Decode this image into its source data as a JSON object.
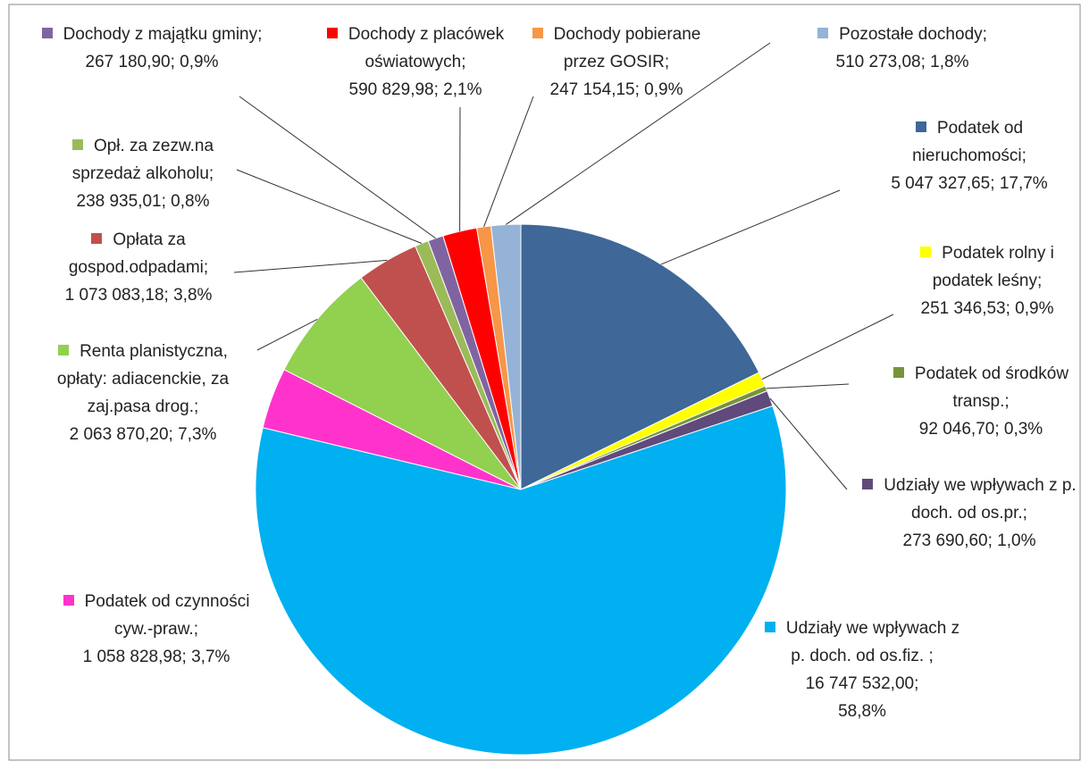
{
  "chart_data": {
    "type": "pie",
    "categories": [
      "Podatek od nieruchomości;",
      "Podatek rolny i podatek leśny;",
      "Podatek od środków transp.;",
      "Udziały we wpływach z p. doch. od os.pr.;",
      "Udziały we wpływach z p. doch. od os.fiz. ;",
      "Podatek od czynności cyw.-praw.;",
      "Renta planistyczna, opłaty: adiacenckie, za zaj.pasa drog.;",
      "Opłata za gospod.odpadami;",
      "Opł. za zezw.na sprzedaż alkoholu;",
      "Dochody z majątku gminy;",
      "Dochody z placówek oświatowych;",
      "Dochody pobierane przez GOSIR;",
      "Pozostałe dochody;"
    ],
    "values": [
      5047327.65,
      251346.53,
      92046.7,
      273690.6,
      16747532.0,
      1058828.98,
      2063870.2,
      1073083.18,
      238935.01,
      267180.9,
      590829.98,
      247154.15,
      510273.08
    ],
    "value_labels": [
      "5 047 327,65;",
      "251 346,53;",
      "92 046,70;",
      "273 690,60;",
      "16 747 532,00;",
      "1 058 828,98;",
      "2 063 870,20;",
      "1 073 083,18;",
      "238 935,01;",
      "267 180,90;",
      "590 829,98;",
      "247 154,15;",
      "510 273,08;"
    ],
    "percents": [
      17.7,
      0.9,
      0.3,
      1.0,
      58.8,
      3.7,
      7.3,
      3.8,
      0.8,
      0.9,
      2.1,
      0.9,
      1.8
    ],
    "percent_labels": [
      "17,7%",
      "0,9%",
      "0,3%",
      "1,0%",
      "58,8%",
      "3,7%",
      "7,3%",
      "3,8%",
      "0,8%",
      "0,9%",
      "2,1%",
      "0,9%",
      "1,8%"
    ],
    "colors": [
      "#3F6797",
      "#FFFF00",
      "#77933C",
      "#604A7B",
      "#00B0F0",
      "#FF33CC",
      "#92D050",
      "#C0504D",
      "#9BBB59",
      "#8064A2",
      "#FF0000",
      "#F79646",
      "#95B3D7"
    ]
  }
}
